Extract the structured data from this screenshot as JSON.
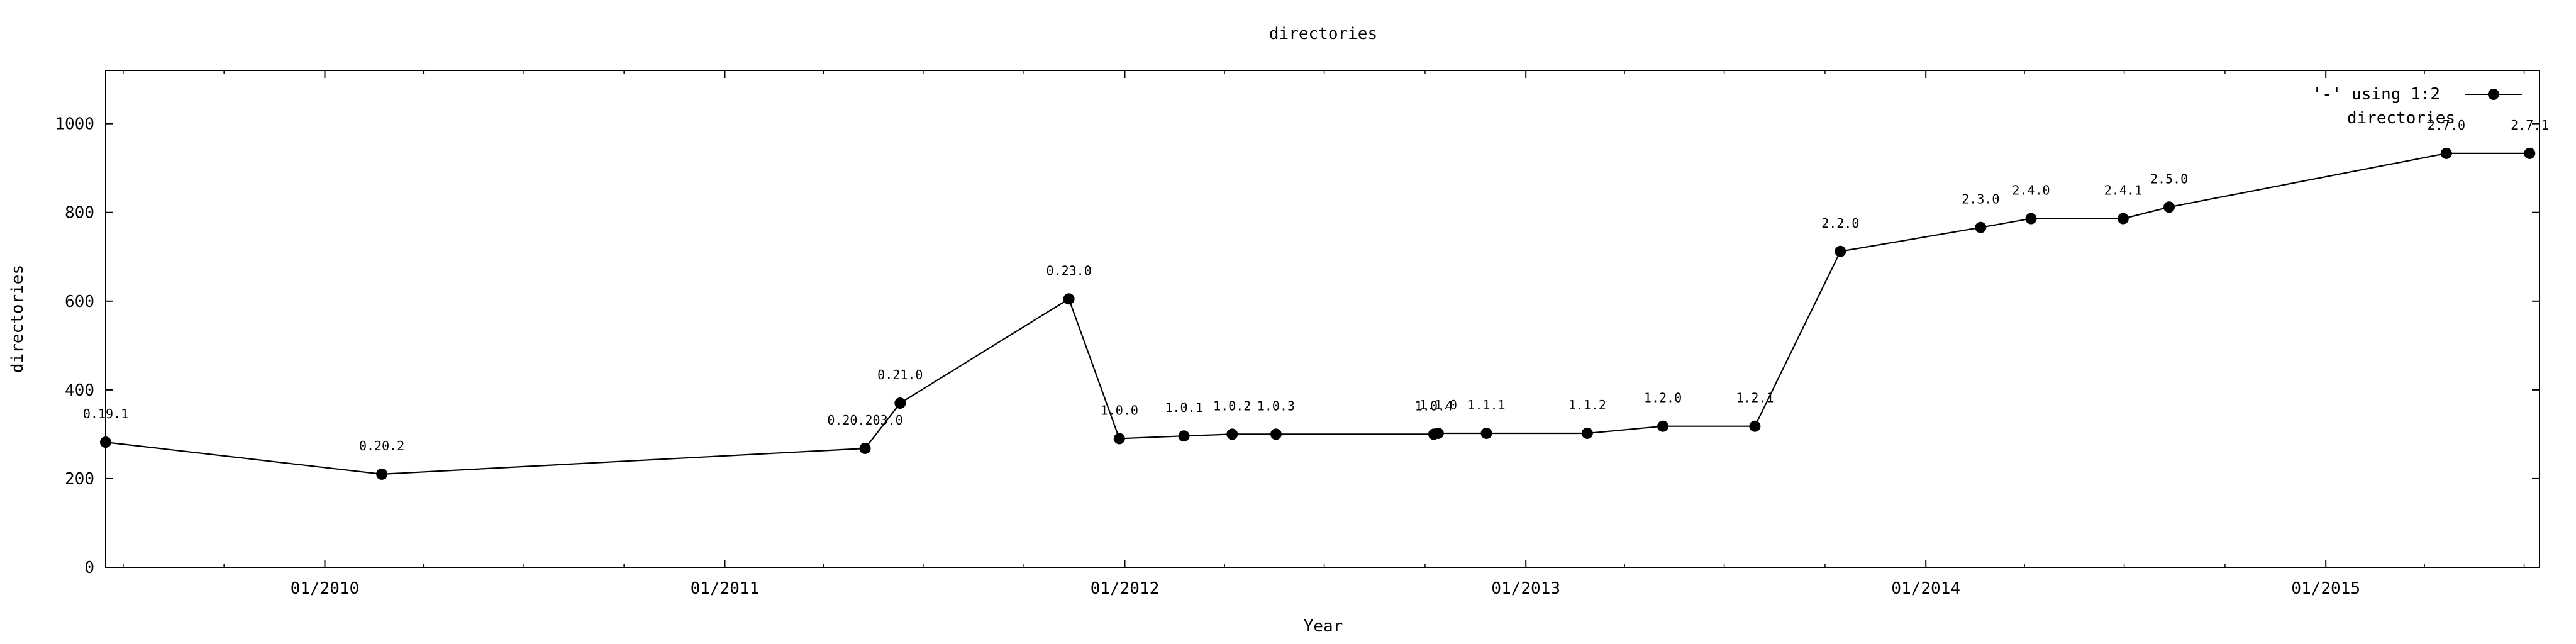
{
  "chart_data": {
    "type": "line",
    "title": "directories",
    "xlabel": "Year",
    "ylabel": "directories",
    "x_axis_type": "date",
    "xlim": [
      "2009-06-15",
      "2015-07-15"
    ],
    "ylim": [
      0,
      1120
    ],
    "y_ticks": [
      0,
      200,
      400,
      600,
      800,
      1000
    ],
    "x_ticks": [
      "2010-01-01",
      "2011-01-01",
      "2012-01-01",
      "2013-01-01",
      "2014-01-01",
      "2015-01-01"
    ],
    "x_tick_labels": [
      "01/2010",
      "01/2011",
      "01/2012",
      "01/2013",
      "01/2014",
      "01/2015"
    ],
    "grid": false,
    "legend": {
      "placement": "top-right",
      "entries": [
        "'-' using 1:2",
        "directories"
      ]
    },
    "series": [
      {
        "name": "'-' using 1:2",
        "marker": "filled-circle",
        "color": "#000000",
        "points": [
          {
            "x": "2009-06-15",
            "y": 282,
            "label": "0.19.1"
          },
          {
            "x": "2010-02-22",
            "y": 210,
            "label": "0.20.2"
          },
          {
            "x": "2011-05-09",
            "y": 268,
            "label": "0.20.203.0"
          },
          {
            "x": "2011-06-10",
            "y": 370,
            "label": "0.21.0"
          },
          {
            "x": "2011-11-11",
            "y": 605,
            "label": "0.23.0"
          },
          {
            "x": "2011-12-27",
            "y": 290,
            "label": "1.0.0"
          },
          {
            "x": "2012-02-24",
            "y": 296,
            "label": "1.0.1"
          },
          {
            "x": "2012-04-08",
            "y": 300,
            "label": "1.0.2"
          },
          {
            "x": "2012-05-18",
            "y": 300,
            "label": "1.0.3"
          },
          {
            "x": "2012-10-09",
            "y": 300,
            "label": "1.0.4"
          },
          {
            "x": "2012-10-13",
            "y": 302,
            "label": "1.1.0"
          },
          {
            "x": "2012-11-26",
            "y": 302,
            "label": "1.1.1"
          },
          {
            "x": "2013-02-26",
            "y": 302,
            "label": "1.1.2"
          },
          {
            "x": "2013-05-06",
            "y": 318,
            "label": "1.2.0"
          },
          {
            "x": "2013-07-29",
            "y": 318,
            "label": "1.2.1"
          },
          {
            "x": "2013-10-15",
            "y": 712,
            "label": "2.2.0"
          },
          {
            "x": "2014-02-20",
            "y": 766,
            "label": "2.3.0"
          },
          {
            "x": "2014-04-07",
            "y": 786,
            "label": "2.4.0"
          },
          {
            "x": "2014-06-30",
            "y": 786,
            "label": "2.4.1"
          },
          {
            "x": "2014-08-11",
            "y": 812,
            "label": "2.5.0"
          },
          {
            "x": "2015-04-21",
            "y": 933,
            "label": "2.7.0"
          },
          {
            "x": "2015-07-06",
            "y": 933,
            "label": "2.7.1"
          }
        ]
      }
    ]
  }
}
